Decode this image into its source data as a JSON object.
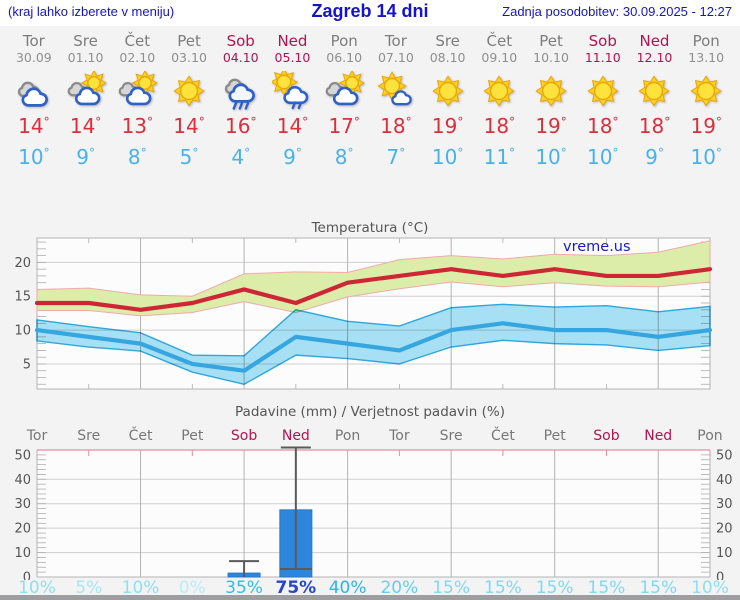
{
  "header": {
    "location_hint": "(kraj lahko izberete v meniju)",
    "title": "Zagreb 14 dni",
    "updated": "Zadnja posodobitev: 30.09.2025 - 12:27"
  },
  "watermark": "vreme.us",
  "colors": {
    "header_blue": "#1414cc",
    "weekend_red": "#b5134f",
    "tmax_red": "#dd2e3a",
    "tmin_blue": "#49b2ea",
    "watermark_blue": "#1a1acd"
  },
  "days": [
    {
      "name": "Tor",
      "date": "30.09",
      "weekend": false,
      "icon": "cloudy",
      "tmax": "14",
      "tmin": "10"
    },
    {
      "name": "Sre",
      "date": "01.10",
      "weekend": false,
      "icon": "cloud-sun",
      "tmax": "14",
      "tmin": "9"
    },
    {
      "name": "Čet",
      "date": "02.10",
      "weekend": false,
      "icon": "cloud-sun",
      "tmax": "13",
      "tmin": "8"
    },
    {
      "name": "Pet",
      "date": "03.10",
      "weekend": false,
      "icon": "sun",
      "tmax": "14",
      "tmin": "5"
    },
    {
      "name": "Sob",
      "date": "04.10",
      "weekend": true,
      "icon": "rain",
      "tmax": "16",
      "tmin": "4"
    },
    {
      "name": "Ned",
      "date": "05.10",
      "weekend": true,
      "icon": "sun-rain",
      "tmax": "14",
      "tmin": "9"
    },
    {
      "name": "Pon",
      "date": "06.10",
      "weekend": false,
      "icon": "cloud-sun",
      "tmax": "17",
      "tmin": "8"
    },
    {
      "name": "Tor",
      "date": "07.10",
      "weekend": false,
      "icon": "sun-cloud",
      "tmax": "18",
      "tmin": "7"
    },
    {
      "name": "Sre",
      "date": "08.10",
      "weekend": false,
      "icon": "sun",
      "tmax": "19",
      "tmin": "10"
    },
    {
      "name": "Čet",
      "date": "09.10",
      "weekend": false,
      "icon": "sun",
      "tmax": "18",
      "tmin": "11"
    },
    {
      "name": "Pet",
      "date": "10.10",
      "weekend": false,
      "icon": "sun",
      "tmax": "19",
      "tmin": "10"
    },
    {
      "name": "Sob",
      "date": "11.10",
      "weekend": true,
      "icon": "sun",
      "tmax": "18",
      "tmin": "10"
    },
    {
      "name": "Ned",
      "date": "12.10",
      "weekend": true,
      "icon": "sun",
      "tmax": "18",
      "tmin": "9"
    },
    {
      "name": "Pon",
      "date": "13.10",
      "weekend": false,
      "icon": "sun",
      "tmax": "19",
      "tmin": "10"
    }
  ],
  "chart_data": [
    {
      "type": "line",
      "title": "Temperatura (°C)",
      "categories": [
        "Tor",
        "Sre",
        "Čet",
        "Pet",
        "Sob",
        "Ned",
        "Pon",
        "Tor",
        "Sre",
        "Čet",
        "Pet",
        "Sob",
        "Ned",
        "Pon"
      ],
      "ylim": [
        1.3,
        23.6
      ],
      "yticks": [
        5,
        10,
        15,
        20
      ],
      "grid": true,
      "legend_position": "none",
      "series": [
        {
          "name": "max temperatura",
          "color": "#cf2635",
          "values": [
            14,
            14,
            13,
            14,
            16,
            14,
            17,
            18,
            19,
            18,
            19,
            18,
            18,
            19
          ],
          "band_upper": [
            16.0,
            16.2,
            15.2,
            15.0,
            18.3,
            18.6,
            18.5,
            20.4,
            21.0,
            20.5,
            21.2,
            21.0,
            21.5,
            23.2
          ],
          "band_lower": [
            12.9,
            12.9,
            12.1,
            12.6,
            14.2,
            12.6,
            14.9,
            16.1,
            17.1,
            16.4,
            17.0,
            16.5,
            16.4,
            17.1
          ],
          "band_fill": "#dcedaa",
          "band_edge": "#f0aaaa"
        },
        {
          "name": "min temperatura",
          "color": "#36a6e0",
          "values": [
            10,
            9,
            8,
            5,
            4,
            9,
            8,
            7,
            10,
            11,
            10,
            10,
            9,
            10
          ],
          "band_upper": [
            11.5,
            10.5,
            9.6,
            6.3,
            6.2,
            13.0,
            11.3,
            10.6,
            13.3,
            13.8,
            13.4,
            13.6,
            12.7,
            13.5
          ],
          "band_lower": [
            8.4,
            7.5,
            6.9,
            3.8,
            2.0,
            6.3,
            5.8,
            5.0,
            7.5,
            8.5,
            8.0,
            7.8,
            7.0,
            7.7
          ],
          "band_fill": "#a9e3f6",
          "band_edge": "#2fa8e0"
        }
      ]
    },
    {
      "type": "bar",
      "title": "Padavine (mm) / Verjetnost padavin (%)",
      "categories": [
        "Tor",
        "Sre",
        "Čet",
        "Pet",
        "Sob",
        "Ned",
        "Pon",
        "Tor",
        "Sre",
        "Čet",
        "Pet",
        "Sob",
        "Ned",
        "Pon"
      ],
      "values_mm": [
        0,
        0,
        0,
        0,
        1.6,
        27.5,
        0,
        0,
        0,
        0,
        0,
        0,
        0,
        0
      ],
      "whiskers": [
        null,
        null,
        null,
        null,
        {
          "low": 0,
          "high": 6.5,
          "cap_low": false
        },
        {
          "low": 3.3,
          "high": 53,
          "cap_low": true
        },
        null,
        null,
        null,
        null,
        null,
        null,
        null,
        null
      ],
      "probabilities": [
        "10%",
        "5%",
        "10%",
        "0%",
        "35%",
        "75%",
        "40%",
        "20%",
        "15%",
        "15%",
        "15%",
        "15%",
        "15%",
        "10%"
      ],
      "prob_colors": [
        "#8edef5",
        "#a5e6f8",
        "#8edef5",
        "#b9ecfa",
        "#2fbdee",
        "#2547cd",
        "#2ab4ec",
        "#62cff1",
        "#7ed9f3",
        "#7ed9f3",
        "#7ed9f3",
        "#7ed9f3",
        "#7ed9f3",
        "#8edef5"
      ],
      "ylim": [
        0,
        52
      ],
      "yticks": [
        0,
        10,
        20,
        30,
        40,
        50
      ],
      "bar_color": "#2e86dc",
      "grid": true
    }
  ]
}
